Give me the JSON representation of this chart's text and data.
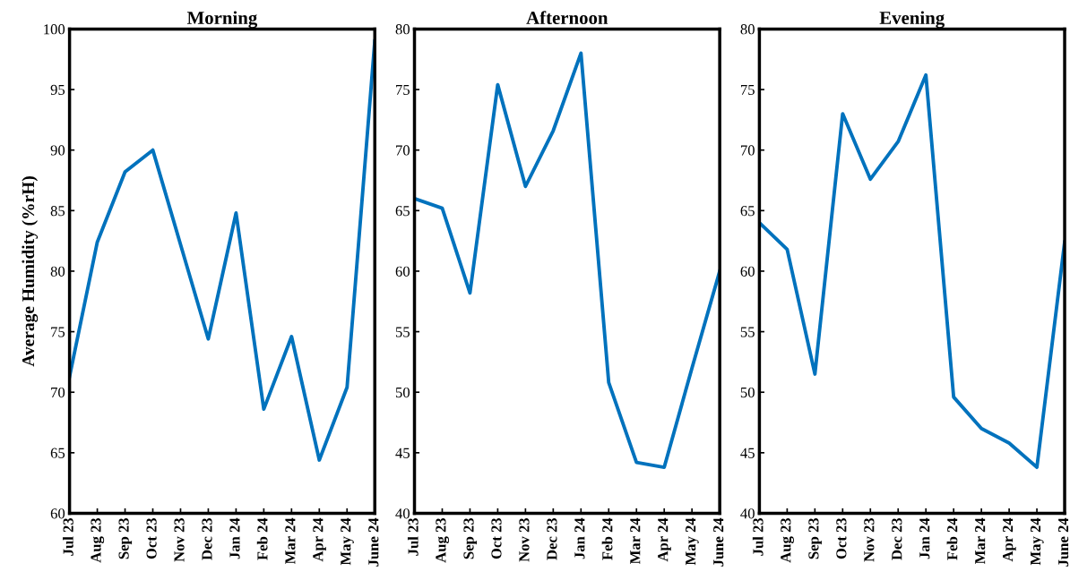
{
  "chart_data": [
    {
      "type": "line",
      "title": "Morning",
      "ylabel": "Average Humidity (%rH)",
      "categories": [
        "Jul 23",
        "Aug 23",
        "Sep 23",
        "Oct 23",
        "Nov 23",
        "Dec 23",
        "Jan 24",
        "Feb 24",
        "Mar 24",
        "Apr 24",
        "May 24",
        "June 24"
      ],
      "series": [
        {
          "color": "#0072bd",
          "values": [
            71.3,
            82.4,
            88.2,
            90,
            82.2,
            74.4,
            84.8,
            68.6,
            74.6,
            64.4,
            70.4,
            99
          ]
        }
      ],
      "ylim": [
        60,
        100
      ],
      "yticks": [
        60,
        65,
        70,
        75,
        80,
        85,
        90,
        95,
        100
      ],
      "grid": false,
      "legend": false,
      "marker": "none",
      "line_style": "solid"
    },
    {
      "type": "line",
      "title": "Afternoon",
      "categories": [
        "Jul 23",
        "Aug 23",
        "Sep 23",
        "Oct 23",
        "Nov 23",
        "Dec 23",
        "Jan 24",
        "Feb 24",
        "Mar 24",
        "Apr 24",
        "May 24",
        "June 24"
      ],
      "series": [
        {
          "color": "#0072bd",
          "values": [
            66,
            65.2,
            58.2,
            75.4,
            67,
            71.6,
            78,
            50.8,
            44.2,
            43.8,
            52,
            60
          ]
        }
      ],
      "ylim": [
        40,
        80
      ],
      "yticks": [
        40,
        45,
        50,
        55,
        60,
        65,
        70,
        75,
        80
      ],
      "grid": false,
      "legend": false,
      "marker": "none",
      "line_style": "solid"
    },
    {
      "type": "line",
      "title": "Evening",
      "categories": [
        "Jul 23",
        "Aug 23",
        "Sep 23",
        "Oct 23",
        "Nov 23",
        "Dec 23",
        "Jan 24",
        "Feb 24",
        "Mar 24",
        "Apr 24",
        "May 24",
        "June 24"
      ],
      "series": [
        {
          "color": "#0072bd",
          "values": [
            64,
            61.8,
            51.5,
            73,
            67.6,
            70.7,
            76.2,
            49.6,
            47,
            45.8,
            43.8,
            62.4
          ]
        }
      ],
      "ylim": [
        40,
        80
      ],
      "yticks": [
        40,
        45,
        50,
        55,
        60,
        65,
        70,
        75,
        80
      ],
      "grid": false,
      "legend": false,
      "marker": "none",
      "line_style": "solid"
    }
  ]
}
